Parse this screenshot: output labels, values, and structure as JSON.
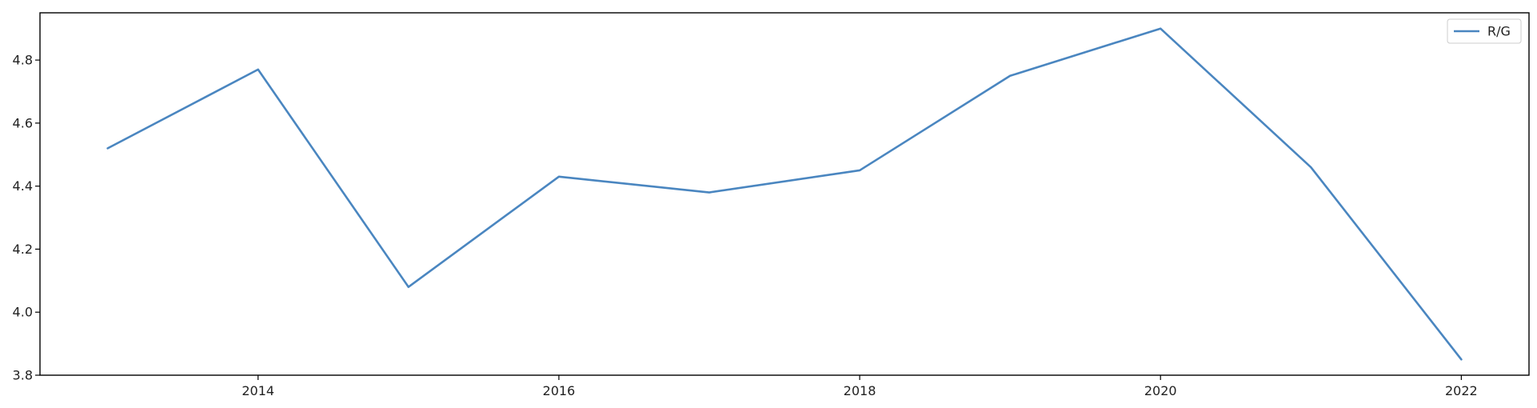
{
  "chart_data": {
    "type": "line",
    "x": [
      2013,
      2014,
      2015,
      2016,
      2017,
      2018,
      2019,
      2020,
      2021,
      2022
    ],
    "series": [
      {
        "name": "R/G",
        "values": [
          4.52,
          4.77,
          4.08,
          4.43,
          4.38,
          4.45,
          4.75,
          4.9,
          4.46,
          3.85
        ],
        "color": "#4a86c0"
      }
    ],
    "xticks": [
      2014,
      2016,
      2018,
      2020,
      2022
    ],
    "yticks": [
      3.8,
      4.0,
      4.2,
      4.4,
      4.6,
      4.8
    ],
    "xlim": [
      2012.55,
      2022.45
    ],
    "ylim": [
      3.8,
      4.95
    ],
    "title": "",
    "xlabel": "",
    "ylabel": "",
    "grid": false,
    "legend_position": "top-right"
  }
}
